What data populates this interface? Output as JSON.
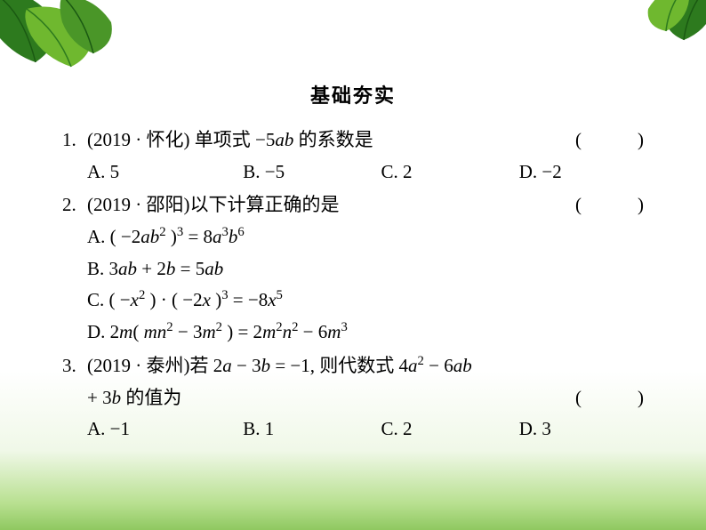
{
  "section_title": "基础夯实",
  "colors": {
    "text": "#000000",
    "bg_top": "#ffffff",
    "bg_bottom": "#8fc860",
    "leaf_green": "#2d7a1e",
    "leaf_light": "#6fb82f",
    "leaf_dark": "#1a5912"
  },
  "questions": [
    {
      "num": "1.",
      "source": "(2019 · 怀化)",
      "stem": "单项式 −5ab 的系数是",
      "paren": "(　　　)",
      "options_layout": "row",
      "options": [
        {
          "label": "A.",
          "text": "5"
        },
        {
          "label": "B.",
          "text": "−5"
        },
        {
          "label": "C.",
          "text": "2"
        },
        {
          "label": "D.",
          "text": "−2"
        }
      ]
    },
    {
      "num": "2.",
      "source": "(2019 · 邵阳)",
      "stem": "以下计算正确的是",
      "paren": "(　　　)",
      "options_layout": "column",
      "options": [
        {
          "label": "A.",
          "html": "( −2<i>ab</i><sup>2</sup> )<sup>3</sup> = 8<i>a</i><sup>3</sup><i>b</i><sup>6</sup>"
        },
        {
          "label": "B.",
          "html": "3<i>ab</i> + 2<i>b</i> = 5<i>ab</i>"
        },
        {
          "label": "C.",
          "html": "( −<i>x</i><sup>2</sup> ) · ( −2<i>x</i> )<sup>3</sup> = −8<i>x</i><sup>5</sup>"
        },
        {
          "label": "D.",
          "html": "2<i>m</i>( <i>mn</i><sup>2</sup> − 3<i>m</i><sup>2</sup> ) = 2<i>m</i><sup>2</sup><i>n</i><sup>2</sup> − 6<i>m</i><sup>3</sup>"
        }
      ]
    },
    {
      "num": "3.",
      "source": "(2019 · 泰州)",
      "stem_html": "若 2<i>a</i> − 3<i>b</i> = −1, 则代数式 4<i>a</i><sup>2</sup> − 6<i>ab</i>",
      "stem_line2_html": "+ 3<i>b</i> 的值为",
      "paren": "(　　　)",
      "options_layout": "row",
      "options": [
        {
          "label": "A.",
          "text": "−1"
        },
        {
          "label": "B.",
          "text": "1"
        },
        {
          "label": "C.",
          "text": "2"
        },
        {
          "label": "D.",
          "text": "3"
        }
      ]
    }
  ]
}
